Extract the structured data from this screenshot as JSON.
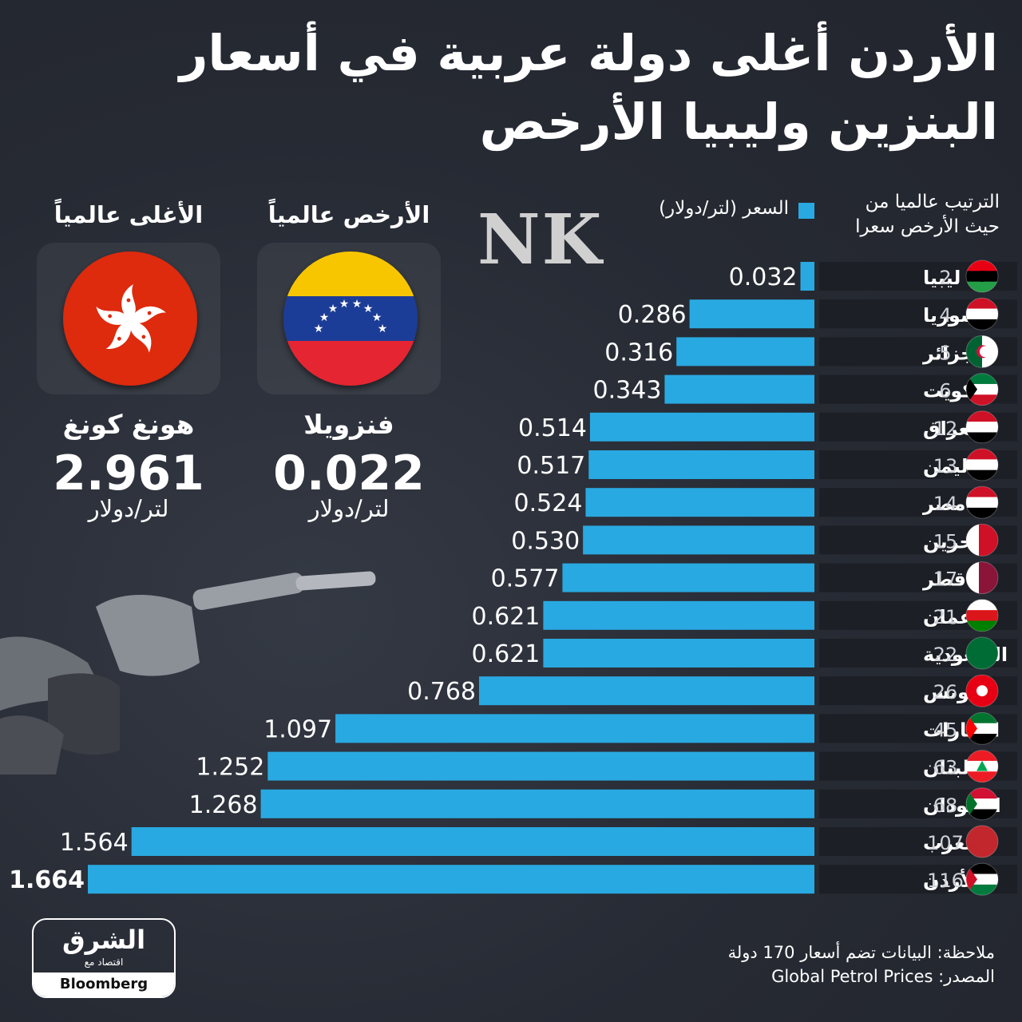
{
  "title": {
    "line1": "الأردن أغلى دولة عربية في أسعار",
    "line2": "البنزين وليبيا الأرخص"
  },
  "watermark": "NK",
  "legend": {
    "label": "السعر (لتر/دولار)",
    "color": "#29a9e1"
  },
  "rank_header": {
    "line1": "الترتيب عالميا من",
    "line2": "حيث الأرخص سعرا"
  },
  "cheapest": {
    "heading": "الأرخص عالمياً",
    "country": "فنزويلا",
    "value": "0.022",
    "unit": "لتر/دولار",
    "flag_icon": "venezuela-flag-icon"
  },
  "most_expensive": {
    "heading": "الأغلى عالمياً",
    "country": "هونغ كونغ",
    "value": "2.961",
    "unit": "لتر/دولار",
    "flag_icon": "hong-kong-flag-icon"
  },
  "chart_data": {
    "type": "bar",
    "orientation": "horizontal",
    "bar_color": "#29a9e1",
    "xlim": [
      0,
      1.664
    ],
    "categories": [
      "ليبيا",
      "سوريا",
      "الجزائر",
      "الكويت",
      "العراق",
      "اليمن",
      "مصر",
      "البحرين",
      "قطر",
      "عمان",
      "السعودية",
      "تونس",
      "الإمارات",
      "لبنان",
      "السودان",
      "المغرب",
      "الأردن"
    ],
    "ranks": [
      "2",
      "4",
      "5",
      "6",
      "12",
      "13",
      "14",
      "15",
      "17",
      "21",
      "22",
      "26",
      "45",
      "63",
      "68",
      "107",
      "116"
    ],
    "values": [
      0.032,
      0.286,
      0.316,
      0.343,
      0.514,
      0.517,
      0.524,
      0.53,
      0.577,
      0.621,
      0.621,
      0.768,
      1.097,
      1.252,
      1.268,
      1.564,
      1.664
    ],
    "labels": [
      "0.032",
      "0.286",
      "0.316",
      "0.343",
      "0.514",
      "0.517",
      "0.524",
      "0.530",
      "0.577",
      "0.621",
      "0.621",
      "0.768",
      "1.097",
      "1.252",
      "1.268",
      "1.564",
      "1.664"
    ],
    "flag_icons": [
      "libya-flag-icon",
      "syria-flag-icon",
      "algeria-flag-icon",
      "kuwait-flag-icon",
      "iraq-flag-icon",
      "yemen-flag-icon",
      "egypt-flag-icon",
      "bahrain-flag-icon",
      "qatar-flag-icon",
      "oman-flag-icon",
      "saudi-flag-icon",
      "tunisia-flag-icon",
      "uae-flag-icon",
      "lebanon-flag-icon",
      "sudan-flag-icon",
      "morocco-flag-icon",
      "jordan-flag-icon"
    ]
  },
  "footer": {
    "note": "ملاحظة: البيانات تضم أسعار 170 دولة",
    "source": "المصدر: Global Petrol Prices"
  },
  "logo": {
    "arabic": "الشرق",
    "sub": "اقتصاد مع",
    "english": "Bloomberg"
  }
}
